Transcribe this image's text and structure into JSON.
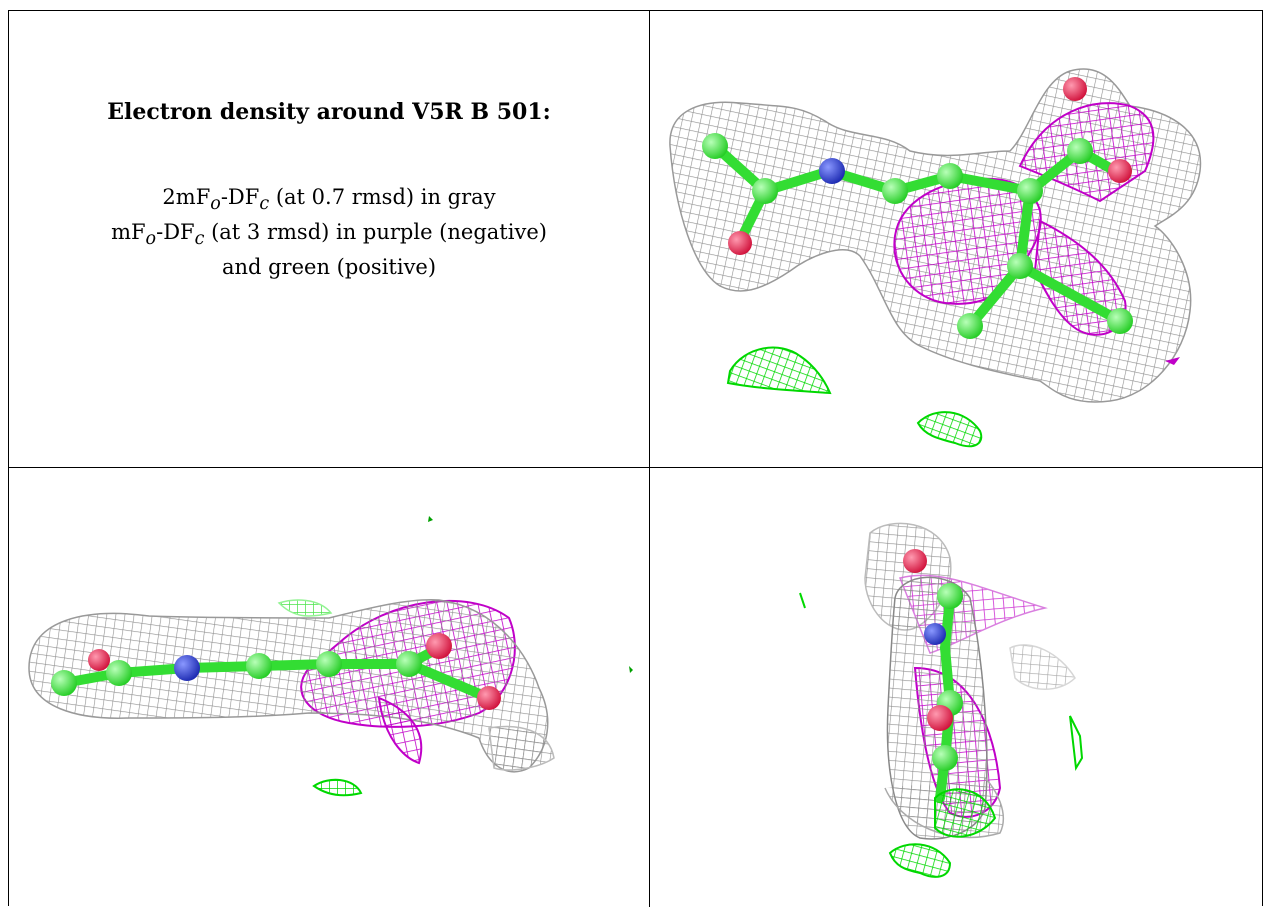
{
  "caption": {
    "title": "Electron density around V5R B 501:",
    "map1_prefix": "2mF",
    "map1_mid": "-DF",
    "map1_suffix": " (at 0.7 rmsd) in gray",
    "map2_prefix": "mF",
    "map2_mid": "-DF",
    "map2_suffix": " (at 3 rmsd) in purple (negative)",
    "sub_o": "o",
    "sub_c": "c",
    "line3": "and green (positive)"
  },
  "colors": {
    "mesh_gray": "#9a9a9a",
    "mesh_purple": "#c000c8",
    "mesh_green": "#00e000",
    "atom_carbon": "#44ee44",
    "atom_oxygen": "#e8204c",
    "atom_nitrogen": "#2838d0"
  },
  "panels": [
    "view-1",
    "view-2",
    "view-3"
  ]
}
